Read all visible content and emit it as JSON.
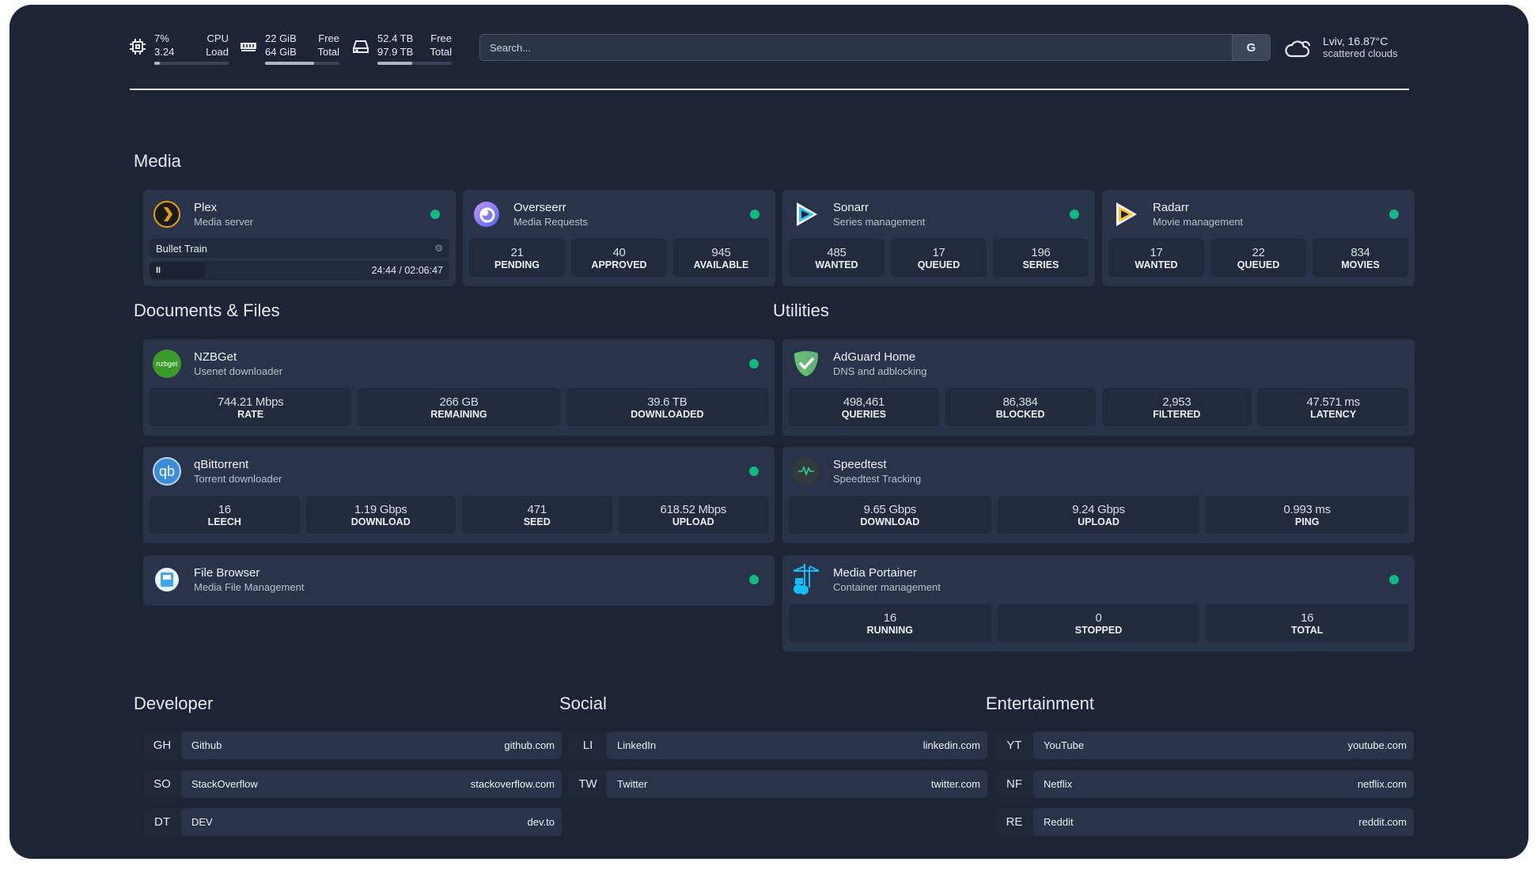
{
  "header": {
    "cpu": {
      "icon": "cpu-icon",
      "value1": "7%",
      "value2": "3.24",
      "label1": "CPU",
      "label2": "Load",
      "usage": 0.07
    },
    "memory": {
      "icon": "memory-icon",
      "value1": "22 GiB",
      "value2": "64 GiB",
      "label1": "Free",
      "label2": "Total",
      "usage": 0.66
    },
    "disk": {
      "icon": "disk-icon",
      "value1": "52.4 TB",
      "value2": "97.9 TB",
      "label1": "Free",
      "label2": "Total",
      "usage": 0.47
    },
    "search": {
      "placeholder": "Search...",
      "button": "G"
    },
    "weather": {
      "icon": "cloud-icon",
      "location": "Lviv, 16.87°C",
      "condition": "scattered clouds"
    }
  },
  "colors": {
    "status_online": "#10b981",
    "background": "#1d2436",
    "card": "#29334a"
  },
  "sections": {
    "media": "Media",
    "documents": "Documents & Files",
    "utilities": "Utilities",
    "developer": "Developer",
    "social": "Social",
    "entertainment": "Entertainment"
  },
  "services": {
    "plex": {
      "icon": "plex-icon",
      "name": "Plex",
      "desc": "Media server",
      "now_playing": {
        "title": "Bullet Train",
        "time": "24:44 / 02:06:47",
        "pause": "II"
      }
    },
    "overseerr": {
      "icon": "overseerr-icon",
      "name": "Overseerr",
      "desc": "Media Requests",
      "stats": [
        {
          "v": "21",
          "l": "PENDING"
        },
        {
          "v": "40",
          "l": "APPROVED"
        },
        {
          "v": "945",
          "l": "AVAILABLE"
        }
      ]
    },
    "sonarr": {
      "icon": "sonarr-icon",
      "name": "Sonarr",
      "desc": "Series management",
      "stats": [
        {
          "v": "485",
          "l": "WANTED"
        },
        {
          "v": "17",
          "l": "QUEUED"
        },
        {
          "v": "196",
          "l": "SERIES"
        }
      ]
    },
    "radarr": {
      "icon": "radarr-icon",
      "name": "Radarr",
      "desc": "Movie management",
      "stats": [
        {
          "v": "17",
          "l": "WANTED"
        },
        {
          "v": "22",
          "l": "QUEUED"
        },
        {
          "v": "834",
          "l": "MOVIES"
        }
      ]
    },
    "nzbget": {
      "icon": "nzbget-icon",
      "logo_text": "nzbget",
      "name": "NZBGet",
      "desc": "Usenet downloader",
      "stats": [
        {
          "v": "744.21 Mbps",
          "l": "RATE"
        },
        {
          "v": "266 GB",
          "l": "REMAINING"
        },
        {
          "v": "39.6 TB",
          "l": "DOWNLOADED"
        }
      ]
    },
    "qbittorrent": {
      "icon": "qbittorrent-icon",
      "logo_text": "qb",
      "name": "qBittorrent",
      "desc": "Torrent downloader",
      "stats": [
        {
          "v": "16",
          "l": "LEECH"
        },
        {
          "v": "1.19 Gbps",
          "l": "DOWNLOAD"
        },
        {
          "v": "471",
          "l": "SEED"
        },
        {
          "v": "618.52 Mbps",
          "l": "UPLOAD"
        }
      ]
    },
    "filebrowser": {
      "icon": "filebrowser-icon",
      "name": "File Browser",
      "desc": "Media File Management"
    },
    "adguard": {
      "icon": "adguard-icon",
      "name": "AdGuard Home",
      "desc": "DNS and adblocking",
      "stats": [
        {
          "v": "498,461",
          "l": "QUERIES"
        },
        {
          "v": "86,384",
          "l": "BLOCKED"
        },
        {
          "v": "2,953",
          "l": "FILTERED"
        },
        {
          "v": "47.571 ms",
          "l": "LATENCY"
        }
      ]
    },
    "speedtest": {
      "icon": "speedtest-icon",
      "name": "Speedtest",
      "desc": "Speedtest Tracking",
      "stats": [
        {
          "v": "9.65 Gbps",
          "l": "DOWNLOAD"
        },
        {
          "v": "9.24 Gbps",
          "l": "UPLOAD"
        },
        {
          "v": "0.993 ms",
          "l": "PING"
        }
      ]
    },
    "portainer": {
      "icon": "portainer-icon",
      "name": "Media Portainer",
      "desc": "Container management",
      "stats": [
        {
          "v": "16",
          "l": "RUNNING"
        },
        {
          "v": "0",
          "l": "STOPPED"
        },
        {
          "v": "16",
          "l": "TOTAL"
        }
      ]
    }
  },
  "bookmarks": {
    "developer": [
      {
        "abbr": "GH",
        "name": "Github",
        "url": "github.com"
      },
      {
        "abbr": "SO",
        "name": "StackOverflow",
        "url": "stackoverflow.com"
      },
      {
        "abbr": "DT",
        "name": "DEV",
        "url": "dev.to"
      }
    ],
    "social": [
      {
        "abbr": "LI",
        "name": "LinkedIn",
        "url": "linkedin.com"
      },
      {
        "abbr": "TW",
        "name": "Twitter",
        "url": "twitter.com"
      }
    ],
    "entertainment": [
      {
        "abbr": "YT",
        "name": "YouTube",
        "url": "youtube.com"
      },
      {
        "abbr": "NF",
        "name": "Netflix",
        "url": "netflix.com"
      },
      {
        "abbr": "RE",
        "name": "Reddit",
        "url": "reddit.com"
      }
    ]
  }
}
